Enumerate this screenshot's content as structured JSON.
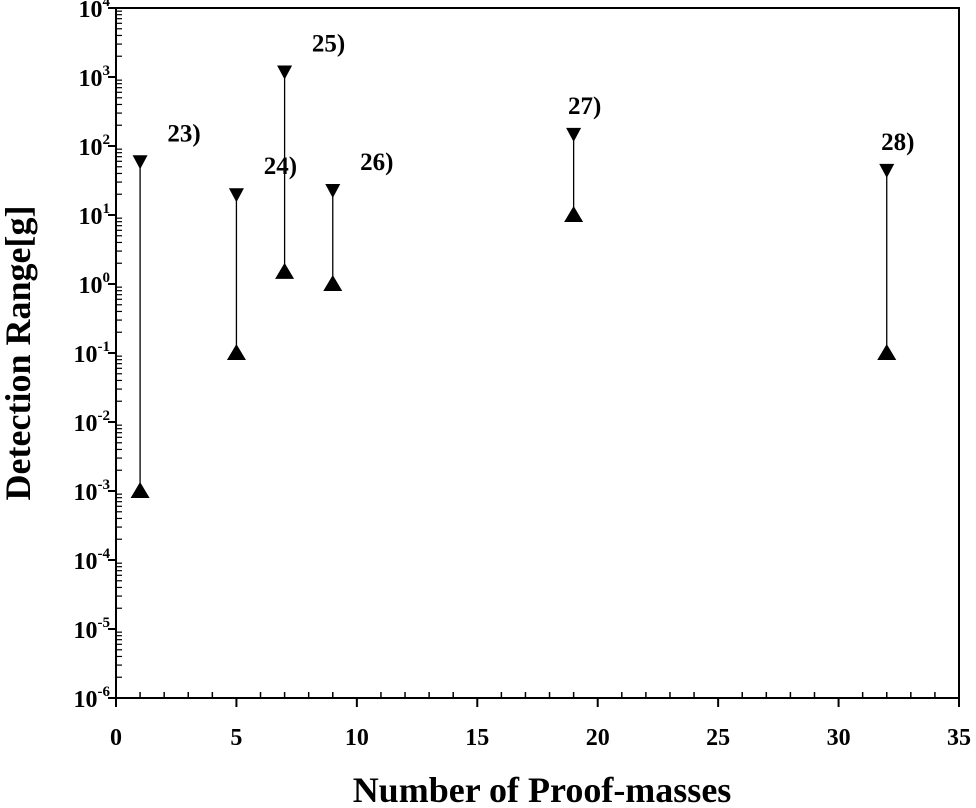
{
  "chart_data": {
    "type": "scatter",
    "title": "",
    "xlabel": "Number of Proof-masses",
    "ylabel": "Detection Range[g]",
    "x_ticks": [
      0,
      5,
      10,
      15,
      20,
      25,
      30,
      35
    ],
    "xlim": [
      0,
      35
    ],
    "y_scale": "log",
    "ylim": [
      1e-06,
      10000.0
    ],
    "y_ticks": [
      {
        "base": "10",
        "exp": "-6",
        "value": 1e-06
      },
      {
        "base": "10",
        "exp": "-5",
        "value": 1e-05
      },
      {
        "base": "10",
        "exp": "-4",
        "value": 0.0001
      },
      {
        "base": "10",
        "exp": "-3",
        "value": 0.001
      },
      {
        "base": "10",
        "exp": "-2",
        "value": 0.01
      },
      {
        "base": "10",
        "exp": "-1",
        "value": 0.1
      },
      {
        "base": "10",
        "exp": "0",
        "value": 1
      },
      {
        "base": "10",
        "exp": "1",
        "value": 10
      },
      {
        "base": "10",
        "exp": "2",
        "value": 100
      },
      {
        "base": "10",
        "exp": "3",
        "value": 1000
      },
      {
        "base": "10",
        "exp": "4",
        "value": 10000
      }
    ],
    "grid": false,
    "marker_min": "triangle-up",
    "marker_max": "triangle-down",
    "ranges": [
      {
        "label": "23)",
        "x": 1,
        "min": 0.001,
        "max": 60
      },
      {
        "label": "24)",
        "x": 5,
        "min": 0.1,
        "max": 20
      },
      {
        "label": "25)",
        "x": 7,
        "min": 1.5,
        "max": 1200
      },
      {
        "label": "26)",
        "x": 9,
        "min": 1,
        "max": 23
      },
      {
        "label": "27)",
        "x": 19,
        "min": 10,
        "max": 150
      },
      {
        "label": "28)",
        "x": 32,
        "min": 0.1,
        "max": 45
      }
    ]
  }
}
